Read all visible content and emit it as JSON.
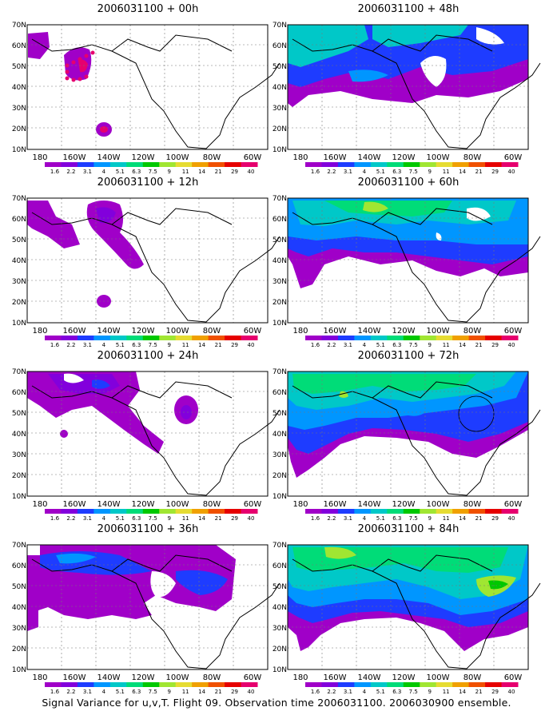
{
  "caption": "Signal Variance for u,v,T. Flight 09. Observation time 2006031100. 2006030900 ensemble.",
  "colorbar": {
    "labels": [
      "1.6",
      "2.2",
      "3.1",
      "4",
      "5.1",
      "6.3",
      "7.5",
      "9",
      "11",
      "14",
      "21",
      "29",
      "40"
    ],
    "colors": [
      "#a000c8",
      "#8200dc",
      "#1e3cff",
      "#0096ff",
      "#00c8c8",
      "#00dc78",
      "#00c800",
      "#a0e632",
      "#e6dc32",
      "#f0a000",
      "#f05000",
      "#e60000",
      "#e6006e"
    ]
  },
  "axes": {
    "x_ticks": [
      "180",
      "160W",
      "140W",
      "120W",
      "100W",
      "80W",
      "60W"
    ],
    "y_ticks": [
      "10N",
      "20N",
      "30N",
      "40N",
      "50N",
      "60N",
      "70N"
    ]
  },
  "panels": [
    {
      "title": "2006031100 + 00h"
    },
    {
      "title": "2006031100 + 48h"
    },
    {
      "title": "2006031100 + 12h"
    },
    {
      "title": "2006031100 + 60h"
    },
    {
      "title": "2006031100 + 24h"
    },
    {
      "title": "2006031100 + 72h"
    },
    {
      "title": "2006031100 + 36h"
    },
    {
      "title": "2006031100 + 84h"
    }
  ]
}
